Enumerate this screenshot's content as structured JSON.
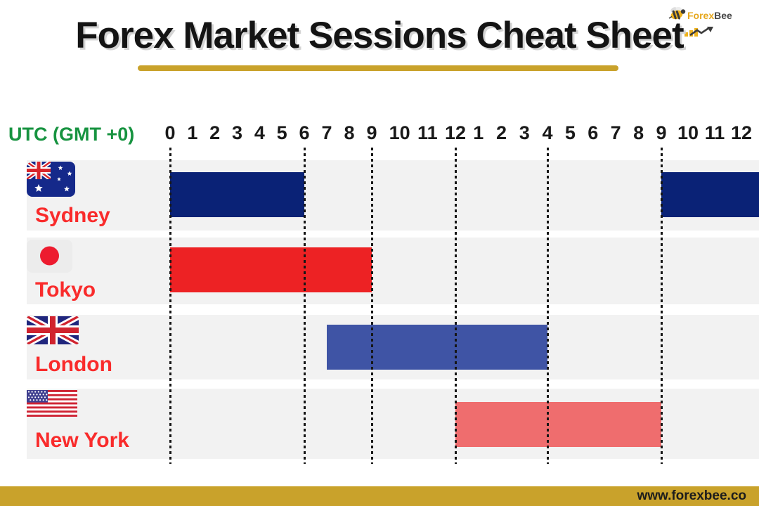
{
  "header": {
    "title": "Forex Market Sessions Cheat Sheet",
    "logo": {
      "brand_part1": "Forex",
      "brand_part2": "Bee"
    }
  },
  "axis": {
    "label": "UTC (GMT +0)",
    "hour_labels": [
      "0",
      "1",
      "2",
      "3",
      "4",
      "5",
      "6",
      "7",
      "8",
      "9",
      "10",
      "11",
      "12",
      "1",
      "2",
      "3",
      "4",
      "5",
      "6",
      "7",
      "8",
      "9",
      "10",
      "11",
      "12"
    ]
  },
  "chart_data": {
    "type": "bar",
    "subtype": "gantt-timeline",
    "xlabel": "UTC (GMT +0)",
    "x_domain_hours": [
      0,
      24
    ],
    "tick_labels": [
      "0",
      "1",
      "2",
      "3",
      "4",
      "5",
      "6",
      "7",
      "8",
      "9",
      "10",
      "11",
      "12",
      "1",
      "2",
      "3",
      "4",
      "5",
      "6",
      "7",
      "8",
      "9",
      "10",
      "11",
      "12"
    ],
    "gridlines_hours": [
      0,
      6,
      9,
      12,
      16,
      21
    ],
    "grid_style": "dotted-vertical",
    "sessions": [
      {
        "city": "Sydney",
        "flag": "australia-flag",
        "open_utc": 21,
        "close_utc": 6,
        "segments": [
          [
            0,
            6
          ],
          [
            21,
            24
          ]
        ],
        "color": "#0a2276"
      },
      {
        "city": "Tokyo",
        "flag": "japan-flag",
        "open_utc": 0,
        "close_utc": 9,
        "segments": [
          [
            0,
            9
          ]
        ],
        "color": "#ed2224"
      },
      {
        "city": "London",
        "flag": "uk-flag",
        "open_utc": 7,
        "close_utc": 16,
        "segments": [
          [
            7,
            16
          ]
        ],
        "color": "#3f54a5"
      },
      {
        "city": "New York",
        "flag": "us-flag",
        "open_utc": 12,
        "close_utc": 21,
        "segments": [
          [
            12,
            21
          ]
        ],
        "color": "#ef6d6e"
      }
    ]
  },
  "footer": {
    "website": "www.forexbee.co"
  },
  "colors": {
    "accent_gold": "#c9a22b",
    "axis_green": "#179340",
    "city_red": "#f92b2b",
    "row_gray": "#f2f2f2",
    "sydney_navy": "#0a2276",
    "tokyo_red": "#ed2224",
    "london_indigo": "#3f54a5",
    "newyork_salmon": "#ef6d6e",
    "text_dark": "#141414"
  }
}
